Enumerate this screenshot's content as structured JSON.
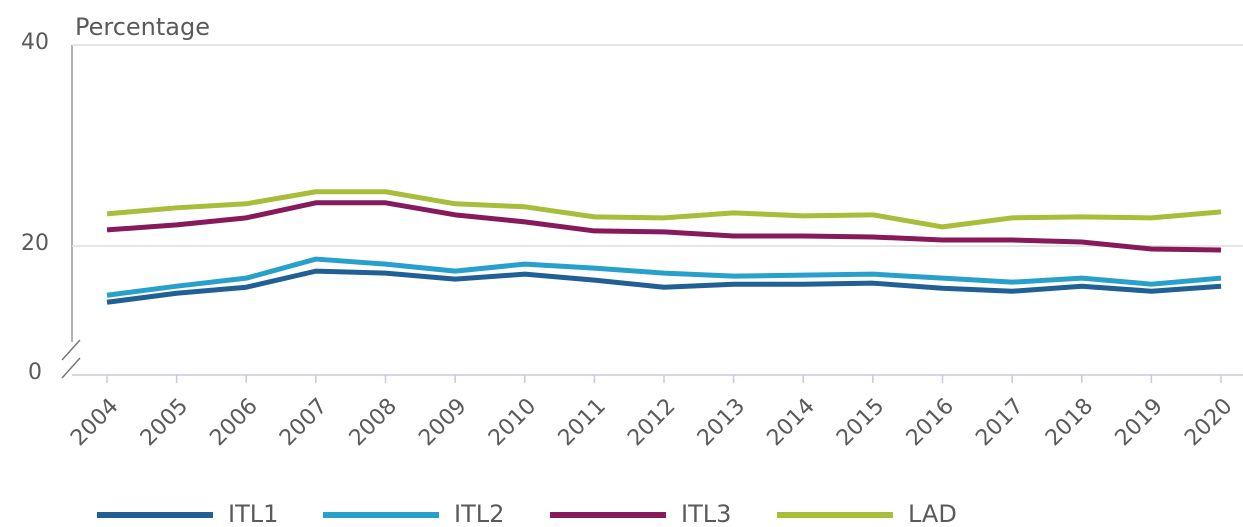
{
  "chart_data": {
    "type": "line",
    "y_axis_label": "Percentage",
    "categories": [
      "2004",
      "2005",
      "2006",
      "2007",
      "2008",
      "2009",
      "2010",
      "2011",
      "2012",
      "2013",
      "2014",
      "2015",
      "2016",
      "2017",
      "2018",
      "2019",
      "2020"
    ],
    "series": [
      {
        "name": "ITL1",
        "color": "#206095",
        "values": [
          14.4,
          15.3,
          15.9,
          17.5,
          17.3,
          16.7,
          17.2,
          16.6,
          15.9,
          16.2,
          16.2,
          16.3,
          15.8,
          15.5,
          16.0,
          15.5,
          16.0
        ]
      },
      {
        "name": "ITL2",
        "color": "#27a0cc",
        "values": [
          15.1,
          16.0,
          16.8,
          18.7,
          18.2,
          17.5,
          18.2,
          17.8,
          17.3,
          17.0,
          17.1,
          17.2,
          16.8,
          16.4,
          16.8,
          16.2,
          16.8
        ]
      },
      {
        "name": "ITL3",
        "color": "#871a5b",
        "values": [
          21.6,
          22.1,
          22.8,
          24.3,
          24.3,
          23.1,
          22.4,
          21.5,
          21.4,
          21.0,
          21.0,
          20.9,
          20.6,
          20.6,
          20.4,
          19.7,
          19.6
        ]
      },
      {
        "name": "LAD",
        "color": "#a8bd3a",
        "values": [
          23.2,
          23.8,
          24.2,
          25.4,
          25.4,
          24.2,
          23.9,
          22.9,
          22.8,
          23.3,
          23.0,
          23.1,
          21.9,
          22.8,
          22.9,
          22.8,
          23.4
        ]
      }
    ],
    "ylim": [
      0,
      40
    ],
    "yticks": [
      0,
      20,
      40
    ],
    "axis_break": true,
    "grid": true
  }
}
